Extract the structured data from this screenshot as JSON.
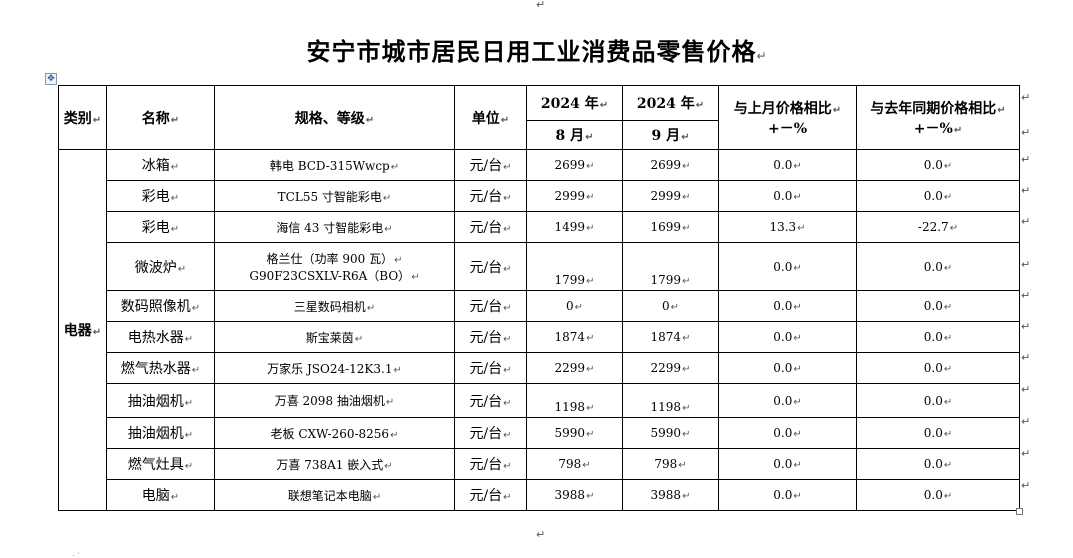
{
  "title": "安宁市城市居民日用工业消费品零售价格",
  "headers": {
    "category": "类别",
    "name": "名称",
    "spec": "规格、等级",
    "unit": "单位",
    "year_aug": "2024 年",
    "month_aug": "8 月",
    "year_sep": "2024 年",
    "month_sep": "9 月",
    "mom_line1": "与上月价格相比",
    "mom_line2": "+－%",
    "yoy_line1": "与去年同期价格相比",
    "yoy_line2": "+－%"
  },
  "category": "电器",
  "rows": [
    {
      "name": "冰箱",
      "spec": "韩电 BCD-315Wwcp",
      "unit": "元/台",
      "aug": "2699",
      "sep": "2699",
      "mom": "0.0",
      "yoy": "0.0"
    },
    {
      "name": "彩电",
      "spec": "TCL55 寸智能彩电",
      "unit": "元/台",
      "aug": "2999",
      "sep": "2999",
      "mom": "0.0",
      "yoy": "0.0"
    },
    {
      "name": "彩电",
      "spec": "海信 43 寸智能彩电",
      "unit": "元/台",
      "aug": "1499",
      "sep": "1699",
      "mom": "13.3",
      "yoy": "-22.7"
    },
    {
      "name": "微波炉",
      "spec": "格兰仕（功率 900 瓦）",
      "spec2": "G90F23CSXLV-R6A（BO）",
      "unit": "元/台",
      "aug": "1799",
      "sep": "1799",
      "mom": "0.0",
      "yoy": "0.0"
    },
    {
      "name": "数码照像机",
      "spec": "三星数码相机",
      "unit": "元/台",
      "aug": "0",
      "sep": "0",
      "mom": "0.0",
      "yoy": "0.0"
    },
    {
      "name": "电热水器",
      "spec": "斯宝莱茵",
      "unit": "元/台",
      "aug": "1874",
      "sep": "1874",
      "mom": "0.0",
      "yoy": "0.0"
    },
    {
      "name": "燃气热水器",
      "spec": "万家乐 JSO24-12K3.1",
      "unit": "元/台",
      "aug": "2299",
      "sep": "2299",
      "mom": "0.0",
      "yoy": "0.0"
    },
    {
      "name": "抽油烟机",
      "spec": "万喜 2098 抽油烟机",
      "unit": "元/台",
      "aug": "1198",
      "sep": "1198",
      "mom": "0.0",
      "yoy": "0.0"
    },
    {
      "name": "抽油烟机",
      "spec": "老板 CXW-260-8256",
      "unit": "元/台",
      "aug": "5990",
      "sep": "5990",
      "mom": "0.0",
      "yoy": "0.0"
    },
    {
      "name": "燃气灶具",
      "spec": "万喜 738A1 嵌入式",
      "unit": "元/台",
      "aug": "798",
      "sep": "798",
      "mom": "0.0",
      "yoy": "0.0"
    },
    {
      "name": "电脑",
      "spec": "联想笔记本电脑",
      "unit": "元/台",
      "aug": "3988",
      "sep": "3988",
      "mom": "0.0",
      "yoy": "0.0"
    }
  ],
  "marks": {
    "paragraph": "↵",
    "move_handle": "✥"
  }
}
